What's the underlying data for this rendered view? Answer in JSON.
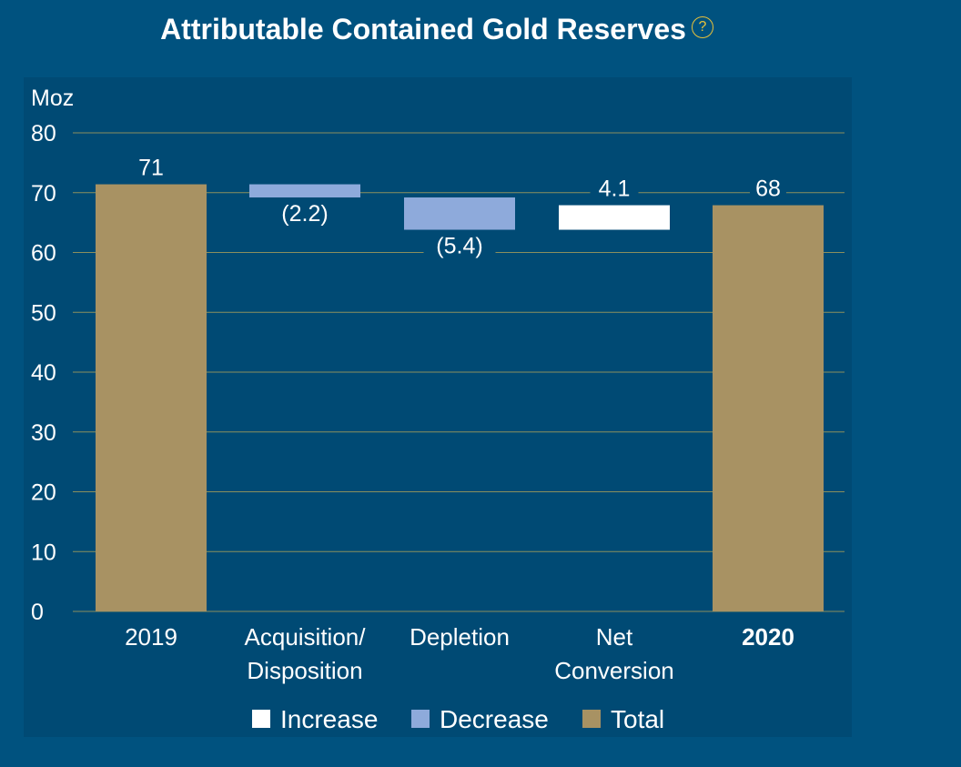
{
  "header": {
    "title": "Attributable Contained Gold Reserves",
    "help_icon": "question-circle-icon",
    "help_glyph": "?"
  },
  "colors": {
    "background": "#00527f",
    "panel": "#004a74",
    "increase": "#ffffff",
    "decrease": "#8eaadb",
    "total": "#a89263",
    "gridline": "#8a8f5e",
    "text": "#ffffff",
    "help_accent": "#e8c23a"
  },
  "chart_data": {
    "type": "bar",
    "subtype": "waterfall",
    "title": "Attributable Contained Gold Reserves",
    "ylabel": "Moz",
    "xlabel": "",
    "ylim": [
      0,
      80
    ],
    "yticks": [
      0,
      10,
      20,
      30,
      40,
      50,
      60,
      70,
      80
    ],
    "grid": true,
    "legend_position": "bottom",
    "categories": [
      [
        "2019"
      ],
      [
        "Acquisition/",
        "Disposition"
      ],
      [
        "Depletion"
      ],
      [
        "Net",
        "Conversion"
      ],
      [
        "2020"
      ]
    ],
    "steps": [
      {
        "kind": "total",
        "start": 0,
        "end": 71.4,
        "label": "71",
        "label_position": "above",
        "category_bold": false
      },
      {
        "kind": "decrease",
        "start": 71.4,
        "end": 69.2,
        "label": "(2.2)",
        "label_position": "below",
        "category_bold": false
      },
      {
        "kind": "decrease",
        "start": 69.2,
        "end": 63.8,
        "label": "(5.4)",
        "label_position": "below",
        "category_bold": false
      },
      {
        "kind": "increase",
        "start": 63.8,
        "end": 67.9,
        "label": "4.1",
        "label_position": "above",
        "category_bold": false
      },
      {
        "kind": "total",
        "start": 0,
        "end": 67.9,
        "label": "68",
        "label_position": "above",
        "category_bold": true
      }
    ],
    "legend": [
      {
        "kind": "increase",
        "label": "Increase"
      },
      {
        "kind": "decrease",
        "label": "Decrease"
      },
      {
        "kind": "total",
        "label": "Total"
      }
    ]
  }
}
